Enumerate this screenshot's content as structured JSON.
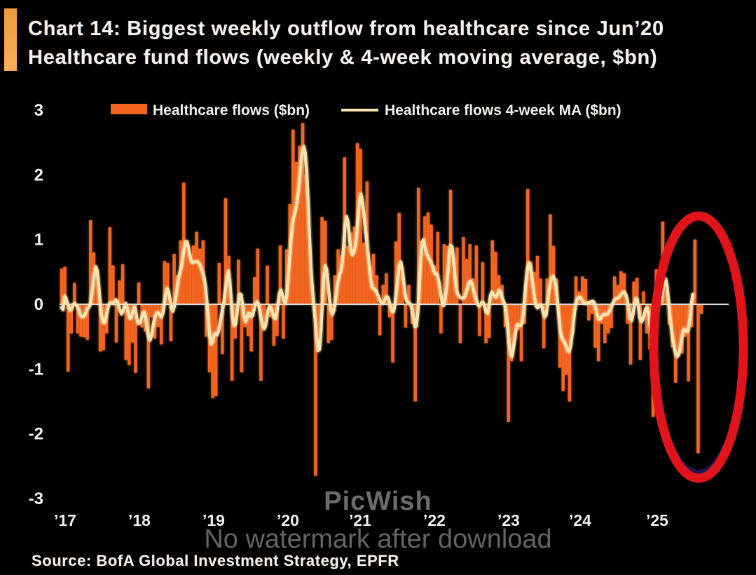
{
  "title": {
    "line1": "Chart 14: Biggest weekly outflow from healthcare since Jun’20",
    "line2": "Healthcare fund flows (weekly & 4-week moving average, $bn)"
  },
  "legend": {
    "bar_label": "Healthcare flows ($bn)",
    "line_label": "Healthcare flows 4-week MA ($bn)"
  },
  "source_note": "Source: BofA Global Investment Strategy, EPFR",
  "watermark": {
    "line1": "PicWish",
    "line2": "No watermark after download"
  },
  "colors": {
    "background": "#000000",
    "bar": "#f3641f",
    "ma_line": "#f8e2ad",
    "zero_line": "#d9d9d9",
    "text": "#f2f0ec",
    "accent_bar": "#faa74c",
    "circle": "#e1141c",
    "watermark": "#8b8b8b"
  },
  "chart_data": {
    "type": "bar",
    "title": "Healthcare fund flows (weekly & 4-week moving average, $bn)",
    "xlabel": "",
    "ylabel": "",
    "x_unit": "week",
    "x_start_year": 2017,
    "ylim": [
      -3,
      3
    ],
    "y_ticks": [
      3,
      2,
      1,
      0,
      -1,
      -2,
      -3
    ],
    "x_tick_labels": [
      "’17",
      "’18",
      "’19",
      "’20",
      "’21",
      "’22",
      "’23",
      "’24",
      "’25"
    ],
    "grid": false,
    "legend_position": "top",
    "annotation": "red ellipse circling the latest weeks, highlighting the biggest weekly outflow since Jun'20",
    "series": [
      {
        "name": "Healthcare flows ($bn)",
        "type": "bar",
        "color": "#f3641f",
        "points_per_year": 23.2,
        "values": [
          0.55,
          0.58,
          -1.04,
          -0.45,
          0.33,
          -0.45,
          -0.5,
          -0.51,
          -0.55,
          1.3,
          0.8,
          0.55,
          -0.73,
          -0.71,
          -0.45,
          1.19,
          0.6,
          -0.59,
          0.37,
          0.62,
          -0.86,
          -0.94,
          -0.59,
          -1.06,
          0.34,
          -0.36,
          -0.42,
          -1.3,
          -0.2,
          -0.53,
          -0.35,
          -0.62,
          0.67,
          0.64,
          -0.57,
          0.78,
          0.45,
          0.99,
          1.88,
          0.95,
          0.78,
          0.91,
          1.12,
          0.86,
          0.99,
          -0.5,
          -1.05,
          -1.45,
          -1.42,
          0.64,
          -0.77,
          1.64,
          0.75,
          -1.18,
          -0.53,
          0.69,
          -1.05,
          -0.35,
          -0.49,
          -0.73,
          0.42,
          0.86,
          -1.18,
          -0.4,
          0.6,
          -0.2,
          -0.64,
          -0.49,
          0.91,
          -0.53,
          0.85,
          1.55,
          2.7,
          2.2,
          2.45,
          2.8,
          2.0,
          0.9,
          0.3,
          -2.65,
          -0.55,
          1.35,
          1.29,
          -0.6,
          -0.55,
          0.45,
          0.85,
          0.75,
          2.27,
          0.9,
          1.11,
          1.2,
          2.49,
          2.4,
          0.95,
          1.9,
          0.6,
          0.78,
          0.45,
          -0.48,
          0.3,
          0.48,
          -0.2,
          -0.9,
          0.97,
          1.41,
          0.5,
          -0.36,
          0.3,
          -0.3,
          -1.5,
          1.8,
          0.97,
          1.36,
          1.42,
          1.23,
          0.6,
          1.12,
          -0.45,
          0.93,
          0.9,
          1.77,
          0.5,
          0.88,
          -0.6,
          1.04,
          0.7,
          0.93,
          0.4,
          0.91,
          -0.49,
          0.65,
          -0.6,
          -0.52,
          0.99,
          0.81,
          0.45,
          0.3,
          -0.35,
          -1.82,
          -0.88,
          -0.55,
          -0.4,
          -0.88,
          -0.3,
          1.78,
          0.66,
          0.5,
          0.75,
          0.4,
          -0.68,
          0.4,
          1.39,
          0.9,
          0.39,
          -0.98,
          -1.34,
          -1.09,
          -1.5,
          -0.45,
          0.43,
          0.2,
          0.43,
          0.39,
          -0.25,
          -0.15,
          -0.67,
          -0.88,
          -0.3,
          -0.6,
          -0.45,
          -0.37,
          0.43,
          0.3,
          0.51,
          0.48,
          -0.3,
          -0.93,
          0.35,
          0.41,
          -0.86,
          0.2,
          -0.45,
          -0.7,
          -1.74,
          0.54,
          0.3,
          1.28,
          0.25,
          -0.31,
          -0.66,
          -1.21,
          -0.76,
          -0.76,
          -0.5,
          -1.19,
          -0.35,
          1.0,
          -2.3,
          -0.15
        ]
      },
      {
        "name": "Healthcare flows 4-week MA ($bn)",
        "type": "line",
        "color": "#f8e2ad",
        "points_per_year": 52,
        "values": [
          -0.05,
          -0.08,
          0.122,
          0.096,
          0.018,
          -0.046,
          -0.091,
          -0.071,
          -0.007,
          0.011,
          -0.011,
          -0.034,
          -0.084,
          -0.156,
          -0.19,
          -0.19,
          -0.176,
          -0.121,
          -0.065,
          -0.052,
          -0.004,
          0.123,
          0.297,
          0.48,
          0.578,
          0.506,
          0.294,
          0.04,
          -0.165,
          -0.277,
          -0.285,
          -0.209,
          -0.102,
          -0.018,
          0.019,
          0.021,
          0.014,
          0.036,
          0.069,
          0.05,
          -0.015,
          -0.094,
          -0.147,
          -0.112,
          -0.019,
          0.012,
          -0.056,
          -0.157,
          -0.218,
          -0.196,
          -0.101,
          -0.038,
          -0.114,
          -0.243,
          -0.297,
          -0.279,
          -0.214,
          -0.135,
          -0.12,
          -0.213,
          -0.366,
          -0.499,
          -0.551,
          -0.491,
          -0.358,
          -0.238,
          -0.165,
          -0.131,
          -0.134,
          -0.172,
          -0.196,
          -0.139,
          -0.001,
          0.158,
          0.244,
          0.205,
          0.082,
          -0.049,
          -0.105,
          -0.039,
          0.1,
          0.251,
          0.393,
          0.495,
          0.577,
          0.709,
          0.87,
          0.966,
          0.967,
          0.884,
          0.752,
          0.661,
          0.645,
          0.652,
          0.659,
          0.662,
          0.644,
          0.61,
          0.559,
          0.49,
          0.409,
          0.268,
          0.025,
          -0.267,
          -0.504,
          -0.613,
          -0.576,
          -0.473,
          -0.448,
          -0.472,
          -0.419,
          -0.306,
          -0.19,
          -0.07,
          0.06,
          0.225,
          0.419,
          0.514,
          0.367,
          0.063,
          -0.195,
          -0.326,
          -0.307,
          -0.161,
          0.024,
          0.157,
          0.148,
          -0.01,
          -0.19,
          -0.266,
          -0.219,
          -0.143,
          -0.141,
          -0.19,
          -0.177,
          -0.087,
          -0.004,
          0.036,
          0.017,
          -0.088,
          -0.222,
          -0.322,
          -0.376,
          -0.34,
          -0.212,
          -0.08,
          -0.027,
          -0.056,
          -0.129,
          -0.205,
          -0.222,
          -0.132,
          0.034,
          0.177,
          0.215,
          0.148,
          0.047,
          0.014,
          0.144,
          0.411,
          0.71,
          1.001,
          1.238,
          1.359,
          1.438,
          1.559,
          1.717,
          1.937,
          2.196,
          2.381,
          2.434,
          2.339,
          2.049,
          1.578,
          1.037,
          0.563,
          0.23,
          -0.003,
          -0.252,
          -0.53,
          -0.715,
          -0.697,
          -0.412,
          0.036,
          0.416,
          0.596,
          0.543,
          0.326,
          0.082,
          -0.095,
          -0.155,
          -0.101,
          0.028,
          0.197,
          0.353,
          0.453,
          0.515,
          0.653,
          0.929,
          1.218,
          1.353,
          1.271,
          1.036,
          0.828,
          0.764,
          0.802,
          0.886,
          1.054,
          1.327,
          1.59,
          1.702,
          1.616,
          1.414,
          1.205,
          1.012,
          0.805,
          0.578,
          0.368,
          0.258,
          0.243,
          0.228,
          0.187,
          0.14,
          0.082,
          0.031,
          0.018,
          0.036,
          0.075,
          0.115,
          0.108,
          0.038,
          -0.052,
          -0.114,
          -0.108,
          0.004,
          0.202,
          0.421,
          0.601,
          0.653,
          0.554,
          0.367,
          0.172,
          0.059,
          0.033,
          0.02,
          -0.008,
          -0.076,
          -0.214,
          -0.343,
          -0.332,
          -0.114,
          0.277,
          0.696,
          0.963,
          0.996,
          0.886,
          0.79,
          0.742,
          0.701,
          0.663,
          0.611,
          0.53,
          0.475,
          0.472,
          0.431,
          0.325,
          0.179,
          0.028,
          -0.019,
          0.066,
          0.232,
          0.482,
          0.751,
          0.906,
          0.889,
          0.703,
          0.434,
          0.235,
          0.156,
          0.123,
          0.102,
          0.097,
          0.099,
          0.127,
          0.189,
          0.266,
          0.339,
          0.363,
          0.31,
          0.224,
          0.144,
          0.072,
          0.009,
          -0.027,
          -0.008,
          0.033,
          0.022,
          -0.046,
          -0.125,
          -0.135,
          -0.013,
          0.14,
          0.186,
          0.153,
          0.118,
          0.114,
          0.162,
          0.215,
          0.192,
          0.113,
          0.051,
          -0.001,
          -0.128,
          -0.351,
          -0.589,
          -0.762,
          -0.806,
          -0.699,
          -0.523,
          -0.376,
          -0.314,
          -0.321,
          -0.327,
          -0.287,
          -0.156,
          0.095,
          0.372,
          0.559,
          0.639,
          0.587,
          0.425,
          0.251,
          0.092,
          -0.022,
          -0.055,
          -0.033,
          -0.005,
          -0.034,
          -0.126,
          -0.195,
          -0.165,
          -0.002,
          0.201,
          0.332,
          0.407,
          0.434,
          0.382,
          0.26,
          0.056,
          -0.204,
          -0.408,
          -0.51,
          -0.557,
          -0.591,
          -0.639,
          -0.704,
          -0.73,
          -0.668,
          -0.521,
          -0.321,
          -0.123,
          0.017,
          0.087,
          0.111,
          0.108,
          0.074,
          0.035,
          0.018,
          0.017,
          0.024,
          0.03,
          0.035,
          0.045,
          0.046,
          0.009,
          -0.071,
          -0.171,
          -0.233,
          -0.227,
          -0.191,
          -0.161,
          -0.153,
          -0.159,
          -0.152,
          -0.123,
          -0.081,
          -0.03,
          0.024,
          0.066,
          0.085,
          0.091,
          0.108,
          0.134,
          0.159,
          0.186,
          0.187,
          0.147,
          0.066,
          -0.076,
          -0.219,
          -0.249,
          -0.159,
          -0.017,
          0.088,
          0.069,
          -0.073,
          -0.218,
          -0.268,
          -0.23,
          -0.146,
          -0.069,
          -0.057,
          -0.147,
          -0.327,
          -0.498,
          -0.538,
          -0.422,
          -0.207,
          -0.013,
          0.036,
          0.007,
          0.06,
          0.207,
          0.347,
          0.388,
          0.272,
          0.041,
          -0.195,
          -0.386,
          -0.54,
          -0.668,
          -0.766,
          -0.806,
          -0.781,
          -0.699,
          -0.559,
          -0.424,
          -0.382,
          -0.41,
          -0.423,
          -0.371,
          -0.222,
          0.007,
          0.152,
          0.062,
          -0.173,
          -0.375,
          -0.457,
          -0.333,
          0.005
        ]
      }
    ]
  }
}
